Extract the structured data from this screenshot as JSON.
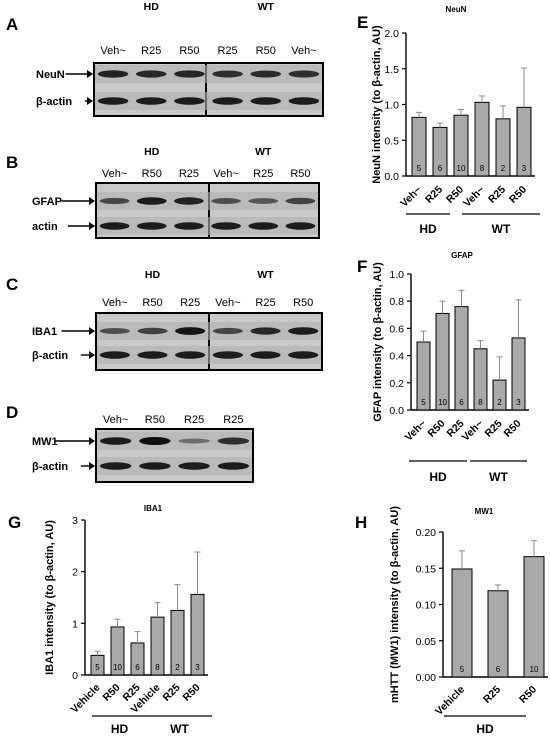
{
  "blots": [
    {
      "letter": "A",
      "groups": [
        {
          "title": "HD",
          "lanes": [
            "Veh~",
            "R25",
            "R50"
          ]
        },
        {
          "title": "WT",
          "lanes": [
            "R25",
            "R50",
            "Veh~"
          ]
        }
      ],
      "rows": [
        {
          "label": "NeuN",
          "bands": [
            0.85,
            0.8,
            0.82,
            0.75,
            0.78,
            0.76
          ]
        },
        {
          "label": "β-actin",
          "bands": [
            0.9,
            0.9,
            0.9,
            0.9,
            0.9,
            0.9
          ]
        }
      ]
    },
    {
      "letter": "B",
      "groups": [
        {
          "title": "HD",
          "lanes": [
            "Veh~",
            "R50",
            "R25"
          ]
        },
        {
          "title": "WT",
          "lanes": [
            "Veh~",
            "R25",
            "R50"
          ]
        }
      ],
      "rows": [
        {
          "label": "GFAP",
          "bands": [
            0.55,
            0.9,
            0.85,
            0.5,
            0.45,
            0.6
          ]
        },
        {
          "label": "actin",
          "bands": [
            0.9,
            0.9,
            0.9,
            0.9,
            0.9,
            0.9
          ]
        }
      ]
    },
    {
      "letter": "C",
      "groups": [
        {
          "title": "HD",
          "lanes": [
            "Veh~",
            "R50",
            "R25"
          ]
        },
        {
          "title": "WT",
          "lanes": [
            "Veh~",
            "R25",
            "R50"
          ]
        }
      ],
      "rows": [
        {
          "label": "IBA1",
          "bands": [
            0.5,
            0.6,
            0.95,
            0.55,
            0.8,
            0.9
          ]
        },
        {
          "label": "β-actin",
          "bands": [
            0.9,
            0.9,
            0.9,
            0.9,
            0.9,
            0.9
          ]
        }
      ]
    },
    {
      "letter": "D",
      "groups": [
        {
          "title": "",
          "lanes": [
            "Veh~",
            "R50",
            "R25",
            "R25"
          ]
        }
      ],
      "rows": [
        {
          "label": "MW1",
          "bands": [
            0.9,
            1.0,
            0.25,
            0.75
          ]
        },
        {
          "label": "β-actin",
          "bands": [
            0.9,
            0.9,
            0.9,
            0.9
          ]
        }
      ]
    }
  ],
  "chart_data": [
    {
      "letter": "E",
      "type": "bar",
      "title": "NeuN",
      "ylabel": "NeuN intensity (to β-actin, AU)",
      "ylim": [
        0,
        2.0
      ],
      "yticks": [
        "0.0",
        "0.5",
        "1.0",
        "1.5",
        "2.0"
      ],
      "categories": [
        "Veh~",
        "R25",
        "R50",
        "Veh~",
        "R25",
        "R50"
      ],
      "values": [
        0.82,
        0.68,
        0.85,
        1.03,
        0.8,
        0.96
      ],
      "errors": [
        0.07,
        0.06,
        0.08,
        0.09,
        0.18,
        0.55
      ],
      "n": [
        "5",
        "6",
        "10",
        "8",
        "2",
        "3"
      ],
      "groups": [
        {
          "name": "HD",
          "from": 0,
          "to": 1
        },
        {
          "name": "WT",
          "from": 2,
          "to": 5
        }
      ]
    },
    {
      "letter": "F",
      "type": "bar",
      "title": "GFAP",
      "ylabel": "GFAP intensity (to β-actin, AU)",
      "ylim": [
        0,
        1.0
      ],
      "yticks": [
        "0.0",
        "0.2",
        "0.4",
        "0.6",
        "0.8",
        "1.0"
      ],
      "categories": [
        "Veh~",
        "R50",
        "R25",
        "Veh~",
        "R25",
        "R50"
      ],
      "values": [
        0.5,
        0.71,
        0.76,
        0.45,
        0.22,
        0.53
      ],
      "errors": [
        0.08,
        0.09,
        0.12,
        0.06,
        0.17,
        0.28
      ],
      "n": [
        "5",
        "10",
        "6",
        "8",
        "2",
        "3"
      ],
      "groups": [
        {
          "name": "HD",
          "from": 0,
          "to": 2
        },
        {
          "name": "WT",
          "from": 3,
          "to": 5
        }
      ]
    },
    {
      "letter": "G",
      "type": "bar",
      "title": "IBA1",
      "ylabel": "IBA1 intensity (to β-actin, AU)",
      "ylim": [
        0,
        3
      ],
      "yticks": [
        "0",
        "1",
        "2",
        "3"
      ],
      "categories": [
        "Vehicle",
        "R50",
        "R25",
        "Vehicle",
        "R25",
        "R50"
      ],
      "values": [
        0.38,
        0.93,
        0.62,
        1.12,
        1.25,
        1.56
      ],
      "errors": [
        0.08,
        0.15,
        0.22,
        0.28,
        0.5,
        0.82
      ],
      "n": [
        "5",
        "10",
        "6",
        "8",
        "2",
        "3"
      ],
      "groups": [
        {
          "name": "HD",
          "from": 0,
          "to": 2
        },
        {
          "name": "WT",
          "from": 3,
          "to": 5
        }
      ]
    },
    {
      "letter": "H",
      "type": "bar",
      "title": "MW1",
      "ylabel": "mHTT (MW1) intensity (to β-actin, AU)",
      "ylim": [
        0,
        0.2
      ],
      "yticks": [
        "0.00",
        "0.05",
        "0.10",
        "0.15",
        "0.20"
      ],
      "categories": [
        "Vehicle",
        "R25",
        "R50"
      ],
      "values": [
        0.149,
        0.119,
        0.166
      ],
      "errors": [
        0.025,
        0.008,
        0.022
      ],
      "n": [
        "5",
        "6",
        "10"
      ],
      "groups": [
        {
          "name": "HD",
          "from": 0,
          "to": 2
        }
      ]
    }
  ],
  "colors": {
    "bar": "#a9a9a9",
    "axis": "#000000",
    "text": "#000000",
    "error": "#8a8a8a"
  }
}
